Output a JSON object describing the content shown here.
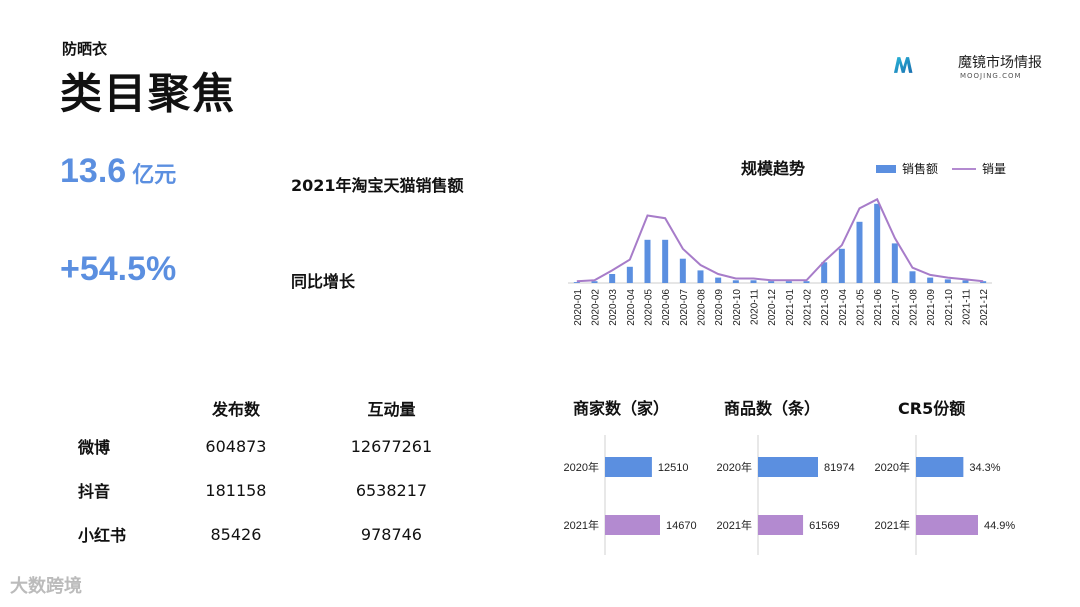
{
  "header": {
    "subtitle": "防晒衣",
    "title": "类目聚焦"
  },
  "logo": {
    "name": "魔镜市场情报",
    "domain": "MOOJING.COM"
  },
  "kpis": {
    "sales_value": "13.6",
    "sales_unit": "亿元",
    "sales_label": "2021年淘宝天猫销售额",
    "growth_value": "+54.5%",
    "growth_label": "同比增长"
  },
  "colors": {
    "accent": "#5b8fe0",
    "purple": "#b38ad0",
    "line": "#a77cc9"
  },
  "social": {
    "headers": [
      "",
      "发布数",
      "互动量"
    ],
    "rows": [
      {
        "name": "微博",
        "posts": "604873",
        "interactions": "12677261"
      },
      {
        "name": "抖音",
        "posts": "181158",
        "interactions": "6538217"
      },
      {
        "name": "小红书",
        "posts": "85426",
        "interactions": "978746"
      }
    ]
  },
  "watermark": "大数跨境",
  "chart_data": [
    {
      "type": "bar",
      "title": "规模趋势",
      "categories": [
        "2020-01",
        "2020-02",
        "2020-03",
        "2020-04",
        "2020-05",
        "2020-06",
        "2020-07",
        "2020-08",
        "2020-09",
        "2020-10",
        "2020-11",
        "2020-12",
        "2021-01",
        "2021-02",
        "2021-03",
        "2021-04",
        "2021-05",
        "2021-06",
        "2021-07",
        "2021-08",
        "2021-09",
        "2021-10",
        "2021-11",
        "2021-12"
      ],
      "series": [
        {
          "name": "销售额",
          "type": "bar",
          "values": [
            1,
            2,
            10,
            18,
            48,
            48,
            27,
            14,
            6,
            3,
            3,
            2,
            2,
            2,
            23,
            38,
            68,
            88,
            44,
            13,
            6,
            4,
            3,
            2
          ]
        },
        {
          "name": "销量",
          "type": "line",
          "values": [
            2,
            3,
            14,
            26,
            75,
            72,
            38,
            20,
            10,
            5,
            5,
            3,
            3,
            3,
            24,
            42,
            83,
            93,
            50,
            17,
            9,
            6,
            4,
            2
          ]
        }
      ],
      "ylim": [
        0,
        100
      ],
      "legend": "top-right"
    },
    {
      "type": "bar",
      "orientation": "horizontal",
      "title": "商家数（家）",
      "categories": [
        "2020年",
        "2021年"
      ],
      "values": [
        12510,
        14670
      ],
      "labels": [
        "12510",
        "14670"
      ]
    },
    {
      "type": "bar",
      "orientation": "horizontal",
      "title": "商品数（条）",
      "categories": [
        "2020年",
        "2021年"
      ],
      "values": [
        81974,
        61569
      ],
      "labels": [
        "81974",
        "61569"
      ]
    },
    {
      "type": "bar",
      "orientation": "horizontal",
      "title": "CR5份额",
      "categories": [
        "2020年",
        "2021年"
      ],
      "values": [
        34.3,
        44.9
      ],
      "labels": [
        "34.3%",
        "44.9%"
      ]
    }
  ]
}
